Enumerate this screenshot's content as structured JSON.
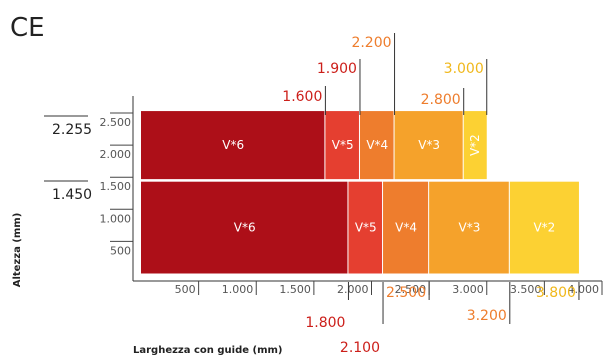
{
  "logo_text": "CE",
  "colors": {
    "V*6": "#ad0f18",
    "V*5": "#e53f30",
    "V*4": "#ee7d2d",
    "V*3": "#f5a22b",
    "V*2": "#fcd133",
    "annotation_red": "#cc1f1a",
    "annotation_orange": "#ee7d2d",
    "annotation_yellow": "#f0b81c"
  },
  "chart_data": {
    "type": "stacked horizontal bar",
    "xlabel": "Larghezza con guide (mm)",
    "ylabel": "Altezza (mm)",
    "xlim": [
      0,
      4000
    ],
    "ylim": [
      0,
      2700
    ],
    "x_ticks": [
      "500",
      "1.000",
      "1.500",
      "2.000",
      "2.500",
      "3.000",
      "3.500",
      "4.000"
    ],
    "y_ticks": [
      "500",
      "1.000",
      "1.500",
      "2.000",
      "2.500"
    ],
    "rows": [
      {
        "max_height_label": "2.255",
        "y_range": [
          1470,
          2530
        ],
        "segments": [
          {
            "label": "V*6",
            "from": 0,
            "to": 1600
          },
          {
            "label": "V*5",
            "from": 1600,
            "to": 1900
          },
          {
            "label": "V*4",
            "from": 1900,
            "to": 2200
          },
          {
            "label": "V*3",
            "from": 2200,
            "to": 2800
          },
          {
            "label": "V*2",
            "from": 2800,
            "to": 3000
          }
        ],
        "width_annotations": [
          {
            "text": "1.600",
            "value": 1600,
            "color": "annotation_red"
          },
          {
            "text": "1.900",
            "value": 1900,
            "color": "annotation_red"
          },
          {
            "text": "2.200",
            "value": 2200,
            "color": "annotation_orange"
          },
          {
            "text": "2.800",
            "value": 2800,
            "color": "annotation_orange"
          },
          {
            "text": "3.000",
            "value": 3000,
            "color": "annotation_yellow"
          }
        ]
      },
      {
        "max_height_label": "1.450",
        "y_range": [
          0,
          1430
        ],
        "segments": [
          {
            "label": "V*6",
            "from": 0,
            "to": 1800
          },
          {
            "label": "V*5",
            "from": 1800,
            "to": 2100
          },
          {
            "label": "V*4",
            "from": 2100,
            "to": 2500
          },
          {
            "label": "V*3",
            "from": 2500,
            "to": 3200
          },
          {
            "label": "V*2",
            "from": 3200,
            "to": 3800
          }
        ],
        "width_annotations": [
          {
            "text": "1.800",
            "value": 1800,
            "color": "annotation_red"
          },
          {
            "text": "2.100",
            "value": 2100,
            "color": "annotation_red"
          },
          {
            "text": "2.500",
            "value": 2500,
            "color": "annotation_orange"
          },
          {
            "text": "3.200",
            "value": 3200,
            "color": "annotation_orange"
          },
          {
            "text": "3.800",
            "value": 3800,
            "color": "annotation_yellow"
          }
        ]
      }
    ]
  }
}
